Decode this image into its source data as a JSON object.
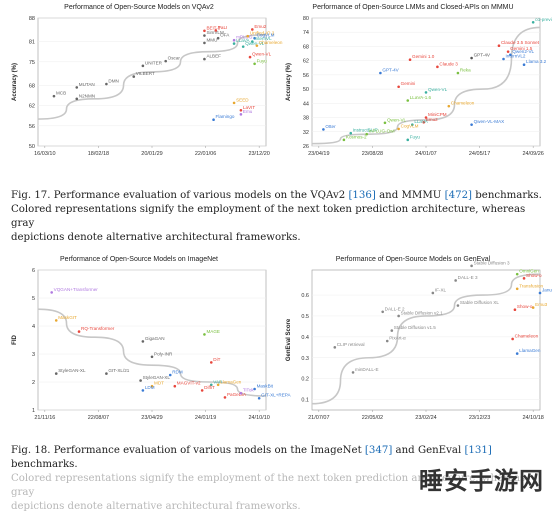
{
  "chart_data": [
    {
      "type": "scatter",
      "title": "Performance of Open-Source Models on VQAv2",
      "xlabel": "",
      "ylabel": "Accuracy (%)",
      "x_ticks": [
        "16/03/10",
        "18/02/18",
        "20/01/29",
        "22/01/06",
        "23/12/20"
      ],
      "y_ticks": [
        "50",
        "56",
        "62",
        "68",
        "75",
        "81",
        "88"
      ],
      "ylim": [
        50,
        88
      ],
      "trend": [
        [
          0,
          58
        ],
        [
          0.25,
          64
        ],
        [
          0.5,
          72
        ],
        [
          0.75,
          78
        ],
        [
          1.0,
          83
        ]
      ],
      "points": [
        {
          "label": "MCB",
          "x": 0.07,
          "y": 64.8,
          "color": "#666666"
        },
        {
          "label": "MUTAN",
          "x": 0.17,
          "y": 67.4,
          "color": "#666666"
        },
        {
          "label": "N2NMN",
          "x": 0.17,
          "y": 64.0,
          "color": "#666666"
        },
        {
          "label": "DMN",
          "x": 0.3,
          "y": 68.4,
          "color": "#666666"
        },
        {
          "label": "UNITER",
          "x": 0.46,
          "y": 73.8,
          "color": "#666666"
        },
        {
          "label": "VILBERT",
          "x": 0.42,
          "y": 70.6,
          "color": "#666666"
        },
        {
          "label": "Oscar",
          "x": 0.56,
          "y": 75.2,
          "color": "#666666"
        },
        {
          "label": "ALBEF",
          "x": 0.73,
          "y": 75.8,
          "color": "#666666"
        },
        {
          "label": "BEiT-3",
          "x": 0.73,
          "y": 84.2,
          "color": "#e8473d"
        },
        {
          "label": "PaLI",
          "x": 0.78,
          "y": 84.3,
          "color": "#e8473d"
        },
        {
          "label": "SimVLM",
          "x": 0.73,
          "y": 82.8,
          "color": "#666666"
        },
        {
          "label": "MMU",
          "x": 0.73,
          "y": 80.6,
          "color": "#666666"
        },
        {
          "label": "OFA",
          "x": 0.79,
          "y": 82.0,
          "color": "#666666"
        },
        {
          "label": "mPLUG",
          "x": 0.86,
          "y": 81.4,
          "color": "#b07ae0"
        },
        {
          "label": "LLaVA",
          "x": 0.86,
          "y": 80.4,
          "color": "#3ab0a0"
        },
        {
          "label": "Emu2",
          "x": 0.94,
          "y": 84.6,
          "color": "#e8473d"
        },
        {
          "label": "Unified-IO 2",
          "x": 0.92,
          "y": 82.6,
          "color": "#e8a830"
        },
        {
          "label": "CogVLM",
          "x": 0.95,
          "y": 82.0,
          "color": "#3a7bd5"
        },
        {
          "label": "InternVL",
          "x": 0.94,
          "y": 81.0,
          "color": "#3ab0a0"
        },
        {
          "label": "Qwen-VL",
          "x": 0.9,
          "y": 79.5,
          "color": "#3ab0a0"
        },
        {
          "label": "Chameleon",
          "x": 0.96,
          "y": 79.8,
          "color": "#e8a830"
        },
        {
          "label": "Qwen-VL",
          "x": 0.93,
          "y": 76.4,
          "color": "#e8473d"
        },
        {
          "label": "Fuyu",
          "x": 0.95,
          "y": 74.4,
          "color": "#7ac040"
        },
        {
          "label": "Flamingo",
          "x": 0.77,
          "y": 57.8,
          "color": "#3a7bd5"
        },
        {
          "label": "SEED",
          "x": 0.86,
          "y": 62.8,
          "color": "#e8a830"
        },
        {
          "label": "LaVIT",
          "x": 0.89,
          "y": 60.6,
          "color": "#e8473d"
        },
        {
          "label": "Emu",
          "x": 0.89,
          "y": 59.4,
          "color": "#b07ae0"
        }
      ]
    },
    {
      "type": "scatter",
      "title": "Performance of Open-Source LMMs and Closed-APIs on MMMU",
      "xlabel": "",
      "ylabel": "Accuracy (%)",
      "x_ticks": [
        "23/04/19",
        "23/08/28",
        "24/01/07",
        "24/05/17",
        "24/09/26"
      ],
      "y_ticks": [
        "26",
        "32",
        "38",
        "44",
        "50",
        "56",
        "62",
        "68",
        "74",
        "80"
      ],
      "ylim": [
        26,
        80
      ],
      "trend": [
        [
          0,
          27
        ],
        [
          0.25,
          31
        ],
        [
          0.5,
          37
        ],
        [
          0.75,
          50
        ],
        [
          1.0,
          76
        ]
      ],
      "points": [
        {
          "label": "o1-preview",
          "x": 0.97,
          "y": 78.2,
          "color": "#3ab0a0"
        },
        {
          "label": "Claude 3.5 Sonnet",
          "x": 0.82,
          "y": 68.3,
          "color": "#e8473d"
        },
        {
          "label": "Gemini 1.5",
          "x": 0.86,
          "y": 65.8,
          "color": "#e8473d"
        },
        {
          "label": "GPT-4V",
          "x": 0.7,
          "y": 63.1,
          "color": "#555555"
        },
        {
          "label": "Qwen2-VL",
          "x": 0.87,
          "y": 64.5,
          "color": "#3a7bd5"
        },
        {
          "label": "InternVL2",
          "x": 0.84,
          "y": 62.7,
          "color": "#3a7bd5"
        },
        {
          "label": "Llama 3.2",
          "x": 0.93,
          "y": 60.3,
          "color": "#3a7bd5"
        },
        {
          "label": "Gemini 1.0",
          "x": 0.43,
          "y": 62.4,
          "color": "#e8473d"
        },
        {
          "label": "Claude 3",
          "x": 0.55,
          "y": 59.4,
          "color": "#e8473d"
        },
        {
          "label": "Reka",
          "x": 0.64,
          "y": 56.8,
          "color": "#7ac040"
        },
        {
          "label": "GPT-4V",
          "x": 0.3,
          "y": 56.8,
          "color": "#3a7bd5"
        },
        {
          "label": "Gemini",
          "x": 0.38,
          "y": 51.0,
          "color": "#e8473d"
        },
        {
          "label": "LLaVA-1.6",
          "x": 0.42,
          "y": 45.2,
          "color": "#7ac040"
        },
        {
          "label": "Qwen-VL",
          "x": 0.5,
          "y": 48.6,
          "color": "#3ab0a0"
        },
        {
          "label": "Chameleon",
          "x": 0.6,
          "y": 42.8,
          "color": "#e8a830"
        },
        {
          "label": "MiniCPM",
          "x": 0.5,
          "y": 38.0,
          "color": "#e8473d"
        },
        {
          "label": "Emu2",
          "x": 0.49,
          "y": 36.0,
          "color": "#e8473d"
        },
        {
          "label": "LLaVA",
          "x": 0.44,
          "y": 35.0,
          "color": "#3ab0a0"
        },
        {
          "label": "Qwen-VL",
          "x": 0.32,
          "y": 35.8,
          "color": "#7ac040"
        },
        {
          "label": "CogVLM",
          "x": 0.38,
          "y": 33.2,
          "color": "#e8a830"
        },
        {
          "label": "Otter",
          "x": 0.05,
          "y": 33.0,
          "color": "#3a7bd5"
        },
        {
          "label": "InstructBLIP",
          "x": 0.17,
          "y": 31.4,
          "color": "#3ab0a0"
        },
        {
          "label": "mPLUG-Owl",
          "x": 0.24,
          "y": 31.0,
          "color": "#7ac040"
        },
        {
          "label": "Kosmos-2",
          "x": 0.14,
          "y": 28.6,
          "color": "#7ac040"
        },
        {
          "label": "Fuyu",
          "x": 0.42,
          "y": 28.6,
          "color": "#3ab0a0"
        },
        {
          "label": "Qwen-VL-MAX",
          "x": 0.7,
          "y": 35.0,
          "color": "#3a7bd5"
        }
      ]
    },
    {
      "type": "scatter",
      "title": "Performance of Open-Source Models on ImageNet",
      "xlabel": "",
      "ylabel": "FID",
      "x_ticks": [
        "21/11/16",
        "22/08/07",
        "23/04/29",
        "24/01/19",
        "24/10/10"
      ],
      "y_ticks": [
        "1",
        "2",
        "3",
        "4",
        "5",
        "6"
      ],
      "ylim": [
        1,
        6
      ],
      "trend": [
        [
          0,
          4.6
        ],
        [
          0.25,
          3.6
        ],
        [
          0.5,
          2.6
        ],
        [
          0.75,
          2.0
        ],
        [
          1.0,
          1.5
        ]
      ],
      "points": [
        {
          "label": "VQGAN+Transformer",
          "x": 0.06,
          "y": 5.2,
          "color": "#b07ae0"
        },
        {
          "label": "MaskGIT",
          "x": 0.08,
          "y": 4.2,
          "color": "#e8a830"
        },
        {
          "label": "RQ-Transformer",
          "x": 0.18,
          "y": 3.8,
          "color": "#e8473d"
        },
        {
          "label": "GigaGAN",
          "x": 0.46,
          "y": 3.45,
          "color": "#666666"
        },
        {
          "label": "Poly-INR",
          "x": 0.5,
          "y": 2.9,
          "color": "#666666"
        },
        {
          "label": "MAGE",
          "x": 0.73,
          "y": 3.7,
          "color": "#7ac040"
        },
        {
          "label": "DiT",
          "x": 0.76,
          "y": 2.7,
          "color": "#e8473d"
        },
        {
          "label": "StyleGAN-XL",
          "x": 0.08,
          "y": 2.3,
          "color": "#666666"
        },
        {
          "label": "GIT-XL/21",
          "x": 0.3,
          "y": 2.3,
          "color": "#666666"
        },
        {
          "label": "StyleGAN-XL",
          "x": 0.45,
          "y": 2.05,
          "color": "#666666"
        },
        {
          "label": "RDM",
          "x": 0.58,
          "y": 2.25,
          "color": "#3a7bd5"
        },
        {
          "label": "MDT",
          "x": 0.5,
          "y": 1.85,
          "color": "#e8a830"
        },
        {
          "label": "MAGVIT-v2",
          "x": 0.6,
          "y": 1.85,
          "color": "#e8473d"
        },
        {
          "label": "LDM",
          "x": 0.46,
          "y": 1.7,
          "color": "#3a7bd5"
        },
        {
          "label": "VAR",
          "x": 0.76,
          "y": 1.9,
          "color": "#3ab0a0"
        },
        {
          "label": "DiffiT",
          "x": 0.72,
          "y": 1.7,
          "color": "#e8473d"
        },
        {
          "label": "LlamaGen",
          "x": 0.79,
          "y": 1.9,
          "color": "#e8a830"
        },
        {
          "label": "MaskBit",
          "x": 0.95,
          "y": 1.75,
          "color": "#3a7bd5"
        },
        {
          "label": "PaGeDiA",
          "x": 0.82,
          "y": 1.45,
          "color": "#e8473d"
        },
        {
          "label": "TiTok",
          "x": 0.89,
          "y": 1.6,
          "color": "#b07ae0"
        },
        {
          "label": "GIT-XL+REPA",
          "x": 0.97,
          "y": 1.42,
          "color": "#3a7bd5"
        }
      ]
    },
    {
      "type": "scatter",
      "title": "Performance of Open-Source Models on GenEval",
      "xlabel": "",
      "ylabel": "GenEval Score",
      "x_ticks": [
        "21/07/07",
        "22/05/02",
        "23/02/24",
        "23/12/23",
        "24/10/18"
      ],
      "y_ticks": [
        "0.1",
        "0.2",
        "0.3",
        "0.4",
        "0.5",
        "0.6"
      ],
      "ylim": [
        0.05,
        0.72
      ],
      "trend": [
        [
          0,
          0.08
        ],
        [
          0.25,
          0.3
        ],
        [
          0.5,
          0.5
        ],
        [
          0.75,
          0.6
        ],
        [
          1.0,
          0.7
        ]
      ],
      "points": [
        {
          "label": "CLIP retrieval",
          "x": 0.1,
          "y": 0.35,
          "color": "#888888"
        },
        {
          "label": "minDALL-E",
          "x": 0.18,
          "y": 0.23,
          "color": "#888888"
        },
        {
          "label": "DALL-E 2",
          "x": 0.31,
          "y": 0.52,
          "color": "#888888"
        },
        {
          "label": "Stable Diffusion v2.1",
          "x": 0.38,
          "y": 0.5,
          "color": "#888888"
        },
        {
          "label": "Stable Diffusion v1.5",
          "x": 0.35,
          "y": 0.43,
          "color": "#888888"
        },
        {
          "label": "PixArt-α",
          "x": 0.33,
          "y": 0.38,
          "color": "#888888"
        },
        {
          "label": "IF-XL",
          "x": 0.53,
          "y": 0.61,
          "color": "#888888"
        },
        {
          "label": "DALL-E 3",
          "x": 0.63,
          "y": 0.67,
          "color": "#888888"
        },
        {
          "label": "Stable Diffusion 3",
          "x": 0.7,
          "y": 0.74,
          "color": "#888888"
        },
        {
          "label": "Stable Diffusion XL",
          "x": 0.64,
          "y": 0.55,
          "color": "#888888"
        },
        {
          "label": "OmniGen",
          "x": 0.9,
          "y": 0.7,
          "color": "#7ac040"
        },
        {
          "label": "Show-o",
          "x": 0.93,
          "y": 0.68,
          "color": "#e8473d"
        },
        {
          "label": "Transfusion",
          "x": 0.9,
          "y": 0.63,
          "color": "#e8a830"
        },
        {
          "label": "Emu3",
          "x": 0.97,
          "y": 0.54,
          "color": "#e8a830"
        },
        {
          "label": "Show-o",
          "x": 0.89,
          "y": 0.53,
          "color": "#e8473d"
        },
        {
          "label": "Chameleon",
          "x": 0.88,
          "y": 0.39,
          "color": "#e8473d"
        },
        {
          "label": "LlamaGen",
          "x": 0.9,
          "y": 0.32,
          "color": "#3a7bd5"
        },
        {
          "label": "Janus",
          "x": 1.0,
          "y": 0.61,
          "color": "#3a7bd5"
        }
      ]
    }
  ],
  "captions": {
    "fig17": {
      "prefix": "Fig. 17.  Performance evaluation of various models on the VQAv2 ",
      "ref1": "[136]",
      "mid": " and MMMU ",
      "ref2": "[472]",
      "suffix": " benchmarks.",
      "line2": "Colored representations signify the employment of the next token prediction architecture, whereas gray",
      "line3": "depictions denote alternative architectural frameworks."
    },
    "fig18": {
      "prefix": "Fig. 18.  Performance evaluation of various models on the ImageNet ",
      "ref1": "[347]",
      "mid": " and GenEval ",
      "ref2": "[131]",
      "suffix": " benchmarks.",
      "line2": "Colored representations signify the employment of the next token prediction architecture, whereas gray",
      "line3": "depictions denote alternative architectural frameworks."
    }
  },
  "watermark": "睡安手游网"
}
